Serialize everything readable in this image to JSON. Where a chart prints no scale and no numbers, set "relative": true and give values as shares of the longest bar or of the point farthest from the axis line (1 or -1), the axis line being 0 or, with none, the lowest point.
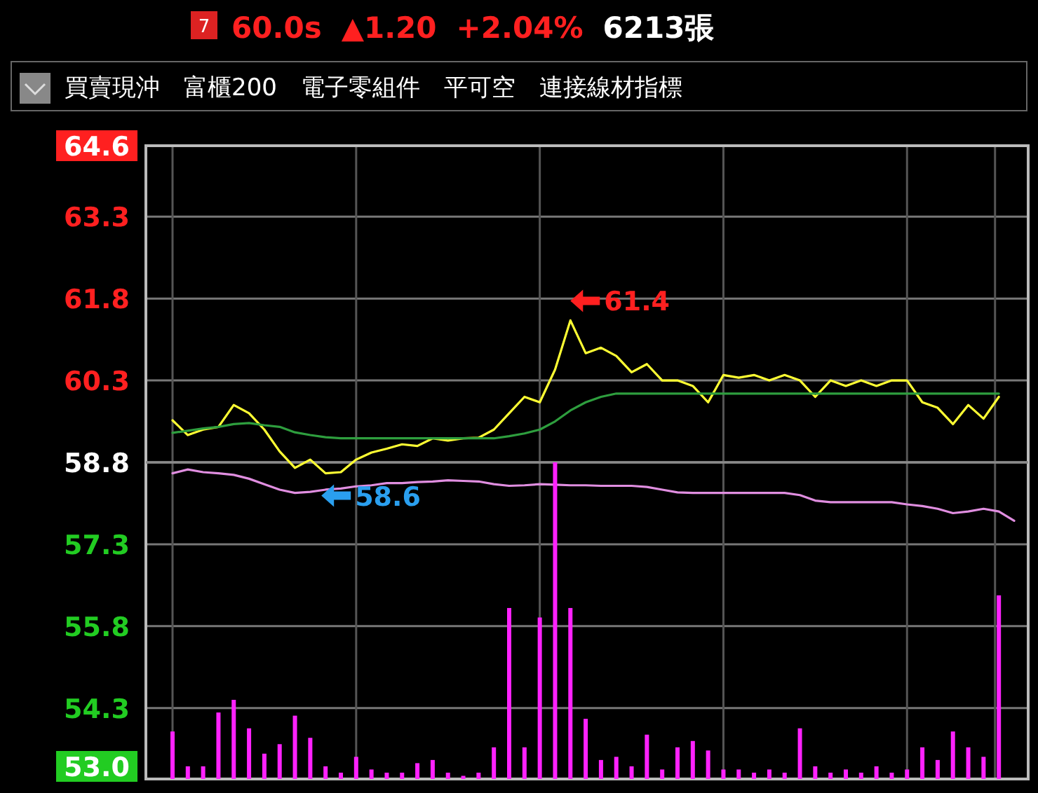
{
  "chart_data": [
    {
      "type": "line",
      "title": "60.0s ▲1.20 +2.04% 6213張",
      "subtitle": "買賣現沖　富櫃200　電子零組件　平可空　連接線材指標",
      "annotations": [
        "7",
        "61.4",
        "58.6"
      ],
      "categories": [
        null,
        null,
        null,
        null,
        null,
        null,
        null,
        null,
        null,
        null,
        null,
        null,
        null,
        null,
        null,
        null,
        null,
        null,
        null,
        null,
        null,
        null,
        null,
        null,
        null,
        null,
        null,
        null,
        null,
        null,
        null,
        null,
        null,
        null,
        null,
        null,
        null,
        null,
        null,
        null,
        null,
        null,
        null,
        null,
        null,
        null,
        null,
        null,
        null,
        null,
        null,
        null,
        null,
        null,
        null,
        null
      ],
      "series": [
        {
          "color": "#ffff33",
          "values": [
            59.57,
            59.3,
            59.4,
            59.45,
            59.85,
            59.7,
            59.4,
            59.0,
            58.7,
            58.85,
            58.6,
            58.62,
            58.85,
            58.98,
            59.05,
            59.13,
            59.1,
            59.24,
            59.2,
            59.24,
            59.25,
            59.4,
            59.7,
            60.0,
            59.9,
            60.5,
            61.4,
            60.8,
            60.9,
            60.75,
            60.45,
            60.6,
            60.3,
            60.3,
            60.2,
            59.9,
            60.4,
            60.35,
            60.4,
            60.3,
            60.4,
            60.3,
            60.0,
            60.3,
            60.2,
            60.3,
            60.2,
            60.3,
            60.3,
            59.9,
            59.8,
            59.5,
            59.85,
            59.6,
            60.0,
            null
          ]
        },
        {
          "color": "#2e9e3e",
          "values": [
            59.34,
            59.38,
            59.42,
            59.45,
            59.5,
            59.52,
            59.48,
            59.45,
            59.35,
            59.3,
            59.26,
            59.24,
            59.24,
            59.24,
            59.24,
            59.24,
            59.24,
            59.24,
            59.24,
            59.24,
            59.24,
            59.24,
            59.28,
            59.33,
            59.4,
            59.55,
            59.75,
            59.9,
            60.0,
            60.06,
            60.06,
            60.06,
            60.06,
            60.06,
            60.06,
            60.06,
            60.06,
            60.06,
            60.06,
            60.06,
            60.06,
            60.06,
            60.06,
            60.06,
            60.06,
            60.06,
            60.06,
            60.06,
            60.06,
            60.06,
            60.06,
            60.06,
            60.06,
            60.06,
            60.06,
            null
          ]
        },
        {
          "color": "#e08ee0",
          "values": [
            58.6,
            58.67,
            58.62,
            58.6,
            58.57,
            58.5,
            58.4,
            58.3,
            58.24,
            58.26,
            58.3,
            58.32,
            58.36,
            58.38,
            58.42,
            58.42,
            58.44,
            58.45,
            58.47,
            58.46,
            58.45,
            58.4,
            58.37,
            58.38,
            58.4,
            58.39,
            58.38,
            58.38,
            58.37,
            58.37,
            58.37,
            58.35,
            58.3,
            58.25,
            58.24,
            58.24,
            58.24,
            58.24,
            58.24,
            58.24,
            58.24,
            58.2,
            58.1,
            58.07,
            58.07,
            58.07,
            58.07,
            58.07,
            58.03,
            58.0,
            57.95,
            57.87,
            57.9,
            57.95,
            57.9,
            57.73
          ]
        }
      ],
      "ylim": [
        53.0,
        64.6
      ],
      "yticks": [
        {
          "value": 53.0,
          "label": "53.0"
        },
        54.3,
        55.8,
        57.3,
        58.8,
        60.3,
        61.8,
        63.3,
        64.6
      ],
      "ref_lines": [
        {
          "axis": "y",
          "value": 58.8,
          "color": "#8a8a8a"
        }
      ],
      "grid": true
    },
    {
      "type": "bar",
      "relative": true,
      "color": "#ff22ff",
      "categories": [
        null,
        null,
        null,
        null,
        null,
        null,
        null,
        null,
        null,
        null,
        null,
        null,
        null,
        null,
        null,
        null,
        null,
        null,
        null,
        null,
        null,
        null,
        null,
        null,
        null,
        null,
        null,
        null,
        null,
        null,
        null,
        null,
        null,
        null,
        null,
        null,
        null,
        null,
        null,
        null,
        null,
        null,
        null,
        null,
        null,
        null,
        null,
        null,
        null,
        null,
        null,
        null,
        null,
        null,
        null,
        null
      ],
      "values": [
        0.15,
        0.04,
        0.04,
        0.21,
        0.25,
        0.16,
        0.08,
        0.11,
        0.2,
        0.13,
        0.04,
        0.02,
        0.07,
        0.03,
        0.02,
        0.02,
        0.05,
        0.06,
        0.02,
        0.01,
        0.02,
        0.1,
        0.54,
        0.1,
        0.51,
        1.0,
        0.54,
        0.19,
        0.06,
        0.07,
        0.04,
        0.14,
        0.03,
        0.1,
        0.12,
        0.09,
        0.03,
        0.03,
        0.02,
        0.03,
        0.02,
        0.16,
        0.04,
        0.02,
        0.03,
        0.02,
        0.04,
        0.02,
        0.03,
        0.1,
        0.06,
        0.15,
        0.1,
        0.07,
        0.58,
        null
      ]
    }
  ]
}
